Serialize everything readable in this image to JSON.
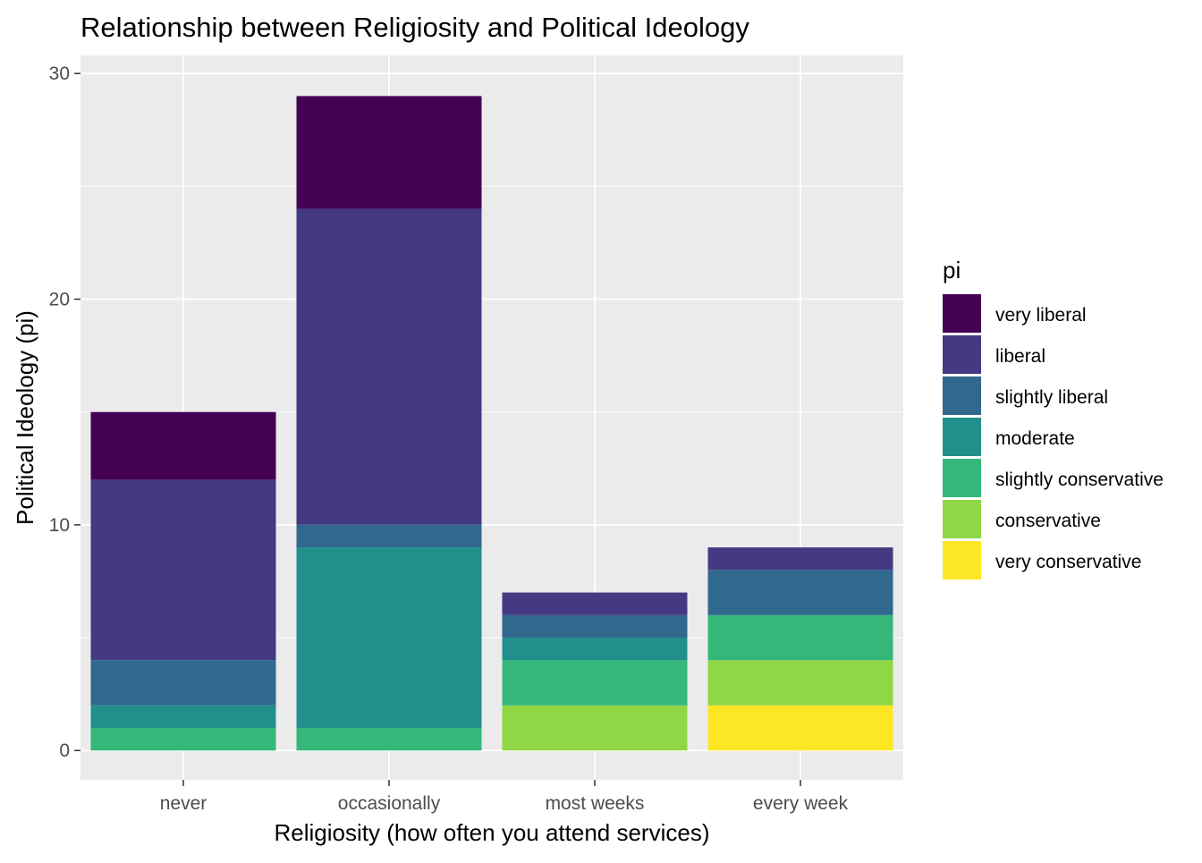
{
  "chart_data": {
    "type": "bar",
    "stacked": true,
    "title": "Relationship between Religiosity and Political Ideology",
    "xlabel": "Religiosity (how often you attend services)",
    "ylabel": "Political Ideology (pi)",
    "ylim": [
      -1.3,
      30.8
    ],
    "yticks": [
      0,
      10,
      20,
      30
    ],
    "grid": true,
    "legend": {
      "title": "pi",
      "position": "right"
    },
    "categories": [
      "never",
      "occasionally",
      "most weeks",
      "every week"
    ],
    "series": [
      {
        "name": "very liberal",
        "color": "#440154",
        "values": [
          3,
          5,
          0,
          0
        ]
      },
      {
        "name": "liberal",
        "color": "#443A83",
        "values": [
          8,
          14,
          1,
          1
        ]
      },
      {
        "name": "slightly liberal",
        "color": "#31688E",
        "values": [
          2,
          1,
          1,
          2
        ]
      },
      {
        "name": "moderate",
        "color": "#21908C",
        "values": [
          1,
          8,
          1,
          0
        ]
      },
      {
        "name": "slightly conservative",
        "color": "#35B779",
        "values": [
          1,
          1,
          2,
          2
        ]
      },
      {
        "name": "conservative",
        "color": "#8FD744",
        "values": [
          0,
          0,
          2,
          2
        ]
      },
      {
        "name": "very conservative",
        "color": "#FDE725",
        "values": [
          0,
          0,
          0,
          2
        ]
      }
    ]
  }
}
